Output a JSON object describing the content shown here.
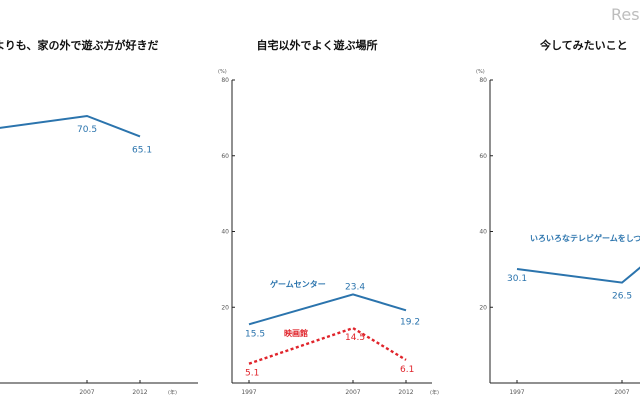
{
  "watermark": "Res",
  "chart_data": [
    {
      "type": "line",
      "title": "よりも、家の外で遊ぶ方が好きだ",
      "y_unit": "(%)",
      "x_unit": "(年)",
      "ylim": [
        0,
        80
      ],
      "x_ticks": [
        "2007",
        "2012"
      ],
      "y_ticks": [],
      "series": [
        {
          "color": "#2b74ad",
          "style": "solid",
          "points": [
            {
              "x": "1997",
              "y": 67.0,
              "label": ""
            },
            {
              "x": "2007",
              "y": 70.5,
              "label": "70.5"
            },
            {
              "x": "2012",
              "y": 65.1,
              "label": "65.1"
            }
          ]
        }
      ]
    },
    {
      "type": "line",
      "title": "自宅以外でよく遊ぶ場所",
      "y_unit": "(%)",
      "x_unit": "(年)",
      "ylim": [
        0,
        80
      ],
      "x_ticks": [
        "1997",
        "2007",
        "2012"
      ],
      "y_ticks": [
        "80",
        "60",
        "40",
        "20"
      ],
      "series": [
        {
          "name": "ゲームセンター",
          "color": "#2b74ad",
          "style": "solid",
          "points": [
            {
              "x": "1997",
              "y": 15.5,
              "label": "15.5"
            },
            {
              "x": "2007",
              "y": 23.4,
              "label": "23.4"
            },
            {
              "x": "2012",
              "y": 19.2,
              "label": "19.2"
            }
          ]
        },
        {
          "name": "映画館",
          "color": "#e0242b",
          "style": "dashed",
          "points": [
            {
              "x": "1997",
              "y": 5.1,
              "label": "5.1"
            },
            {
              "x": "2007",
              "y": 14.5,
              "label": "14.5"
            },
            {
              "x": "2012",
              "y": 6.1,
              "label": "6.1"
            }
          ]
        }
      ]
    },
    {
      "type": "line",
      "title": "今してみたいこと",
      "y_unit": "(%)",
      "x_unit": "",
      "ylim": [
        0,
        80
      ],
      "x_ticks": [
        "1997",
        "2007"
      ],
      "y_ticks": [
        "80",
        "60",
        "40",
        "20"
      ],
      "series": [
        {
          "name": "いろいろなテレビゲームをしつ",
          "color": "#2b74ad",
          "style": "solid",
          "points": [
            {
              "x": "1997",
              "y": 30.1,
              "label": "30.1"
            },
            {
              "x": "2007",
              "y": 26.5,
              "label": "26.5"
            },
            {
              "x": "2012",
              "y": 37.0,
              "label": ""
            }
          ]
        }
      ]
    }
  ]
}
